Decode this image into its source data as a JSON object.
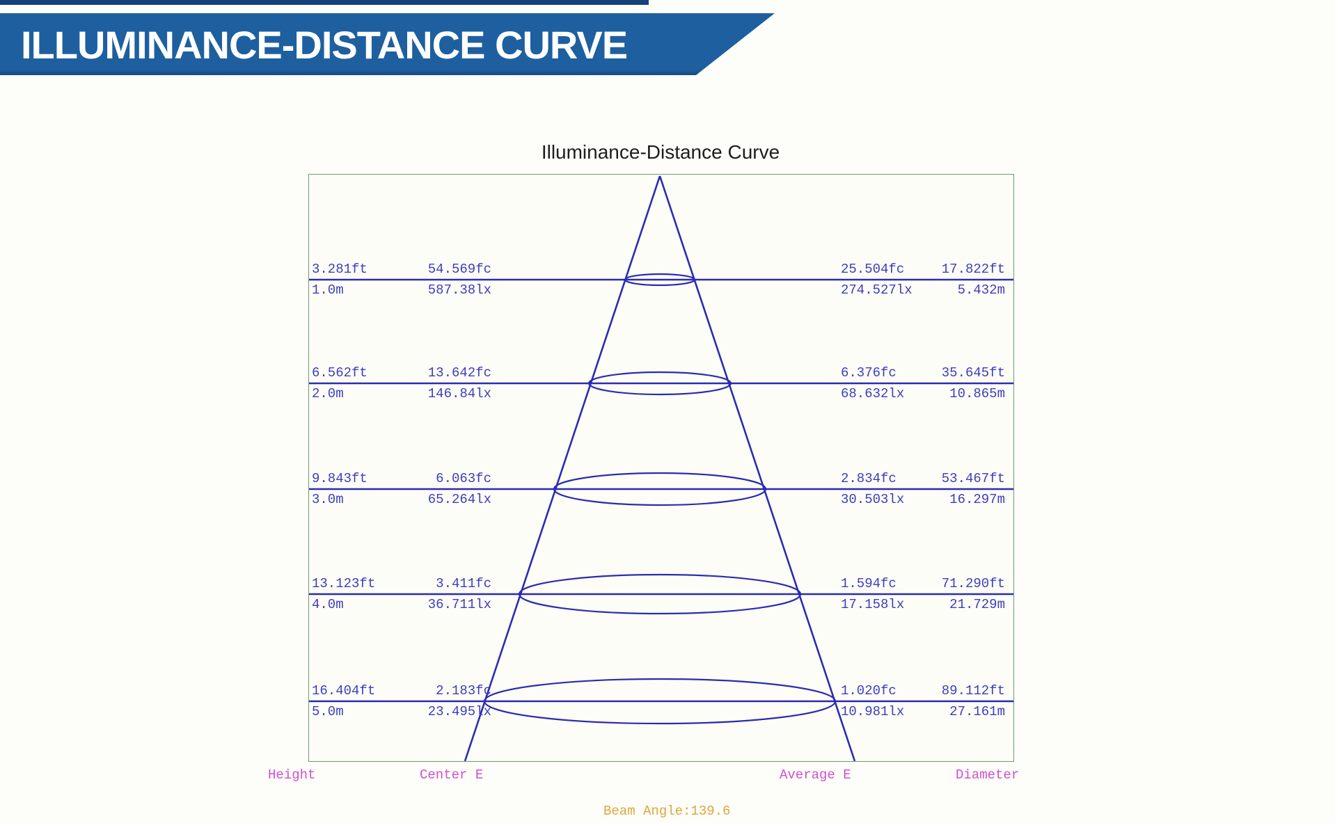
{
  "banner": {
    "title": "ILLUMINANCE-DISTANCE CURVE"
  },
  "chart_data": {
    "type": "table",
    "title": "Illuminance-Distance Curve",
    "columns": [
      "Height",
      "Center E",
      "Average E",
      "Diameter"
    ],
    "beam_angle_label": "Beam Angle:139.6",
    "beam_angle_deg": 139.6,
    "rows": [
      {
        "height": [
          "3.281ft",
          "1.0m"
        ],
        "center_e": [
          "54.569fc",
          "587.38lx"
        ],
        "average_e": [
          "25.504fc",
          "274.527lx"
        ],
        "diameter": [
          "17.822ft",
          "5.432m"
        ]
      },
      {
        "height": [
          "6.562ft",
          "2.0m"
        ],
        "center_e": [
          "13.642fc",
          "146.84lx"
        ],
        "average_e": [
          "6.376fc",
          "68.632lx"
        ],
        "diameter": [
          "35.645ft",
          "10.865m"
        ]
      },
      {
        "height": [
          "9.843ft",
          "3.0m"
        ],
        "center_e": [
          "6.063fc",
          "65.264lx"
        ],
        "average_e": [
          "2.834fc",
          "30.503lx"
        ],
        "diameter": [
          "53.467ft",
          "16.297m"
        ]
      },
      {
        "height": [
          "13.123ft",
          "4.0m"
        ],
        "center_e": [
          "3.411fc",
          "36.711lx"
        ],
        "average_e": [
          "1.594fc",
          "17.158lx"
        ],
        "diameter": [
          "71.290ft",
          "21.729m"
        ]
      },
      {
        "height": [
          "16.404ft",
          "5.0m"
        ],
        "center_e": [
          "2.183fc",
          "23.495lx"
        ],
        "average_e": [
          "1.020fc",
          "10.981lx"
        ],
        "diameter": [
          "89.112ft",
          "27.161m"
        ]
      }
    ]
  },
  "colors": {
    "banner_blue": "#1e5fa0",
    "banner_dark_strip": "#16417d",
    "beam_line_blue": "#2b2bb2",
    "value_text_blue": "#3d3dc0",
    "chart_border_green": "#6f9b6f",
    "axis_label_magenta": "#d050d0",
    "beam_angle_orange": "#dfa73f",
    "title_text": "#1d1d1d"
  }
}
